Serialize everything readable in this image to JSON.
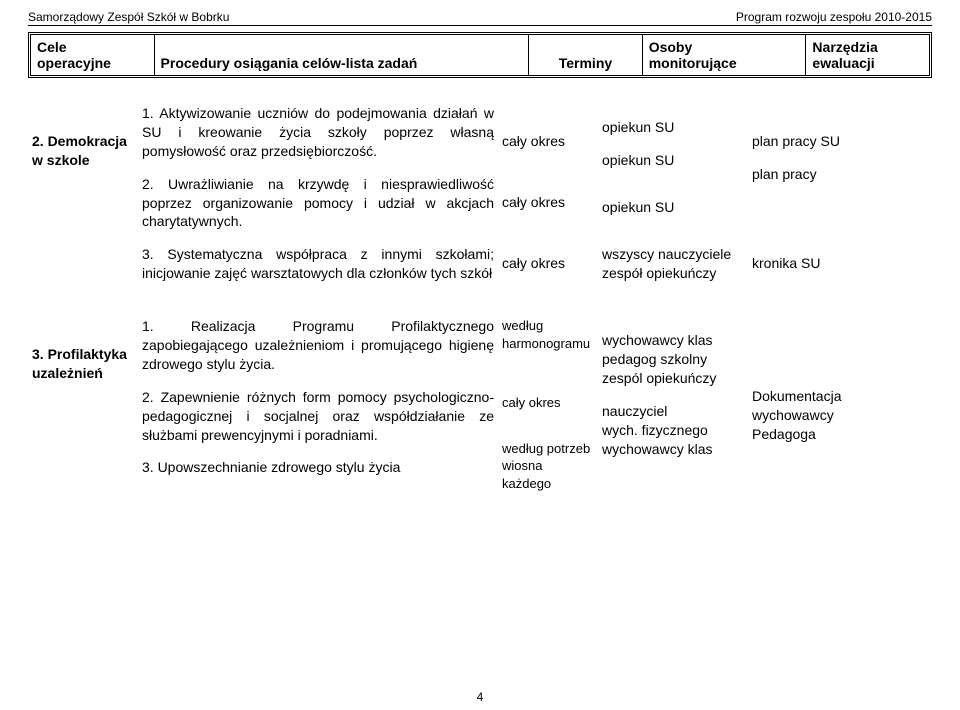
{
  "header": {
    "left": "Samorządowy Zespół Szkół w Bobrku",
    "right": "Program rozwoju zespołu 2010-2015"
  },
  "thead": {
    "c1a": "Cele",
    "c1b": "operacyjne",
    "c2": "Procedury osiągania celów-lista zadań",
    "c3": "Terminy",
    "c4a": "Osoby",
    "c4b": "monitorujące",
    "c5a": "Narzędzia",
    "c5b": "ewaluacji"
  },
  "sectA": {
    "title": "2. Demokracja w szkole",
    "t1": "1.   Aktywizowanie uczniów do  podejmowania działań w SU i kreowanie życia szkoły poprzez własną pomysłowość oraz przedsiębiorczość.",
    "t2": "2.   Uwrażliwianie na krzywdę i niesprawiedliwość poprzez organizowanie pomocy i udział w akcjach charytatywnych.",
    "t3": "3.   Systematyczna współpraca z innymi szkołami; inicjowanie zajęć warsztatowych dla członków tych szkół",
    "term1": "cały okres",
    "term2": "cały okres",
    "term3": "cały okres",
    "mon1": "opiekun SU",
    "mon2": "opiekun SU",
    "mon3": "opiekun SU",
    "mon4": "wszyscy nauczyciele",
    "mon5": "zespół opiekuńczy",
    "ev1": "plan pracy SU",
    "ev2": "plan pracy",
    "ev3": "kronika SU"
  },
  "sectB": {
    "title": "3. Profilaktyka uzależnień",
    "t1": "1.    Realizacja Programu Profilaktycznego zapobiegającego uzależnieniom i promującego higienę zdrowego stylu życia.",
    "t2": "2.    Zapewnienie różnych form pomocy psychologiczno-pedagogicznej i socjalnej oraz współdziałanie ze służbami prewencyjnymi i poradniami.",
    "t3": "3.    Upowszechnianie zdrowego stylu życia",
    "term1a": "według",
    "term1b": "harmonogramu",
    "term2": "cały okres",
    "term3a": "według potrzeb",
    "term3b": "wiosna każdego",
    "mon1": "wychowawcy klas",
    "mon2": "pedagog szkolny",
    "mon3": "zespól opiekuńczy",
    "mon4": "nauczyciel",
    "mon5": "wych. fizycznego",
    "mon6": "wychowawcy klas",
    "ev1": "Dokumentacja wychowawcy Pedagoga"
  },
  "pagenum": "4"
}
